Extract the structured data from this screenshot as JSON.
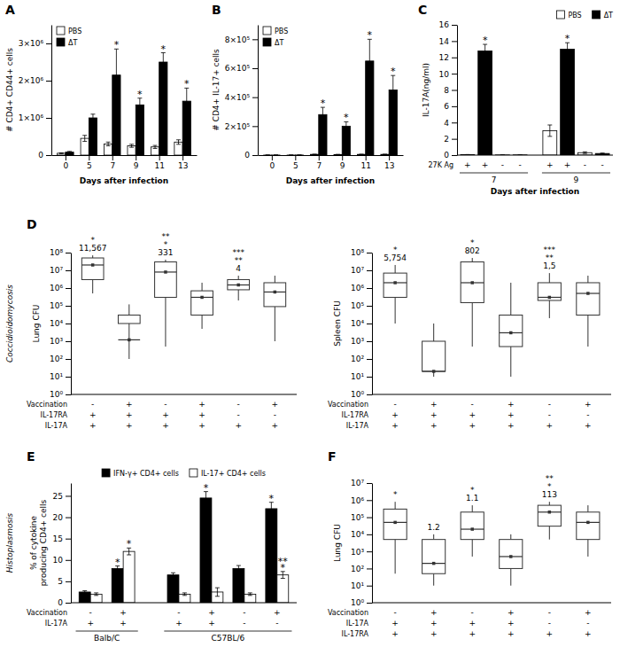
{
  "chart_data": [
    {
      "type": "bar",
      "title": "A",
      "xlabel": "Days after infection",
      "ylabel": "# CD4+ CD44+ cells",
      "categories": [
        "0",
        "5",
        "7",
        "9",
        "11",
        "13"
      ],
      "series": [
        {
          "name": "PBS",
          "color": "white",
          "values": [
            50000,
            450000,
            300000,
            250000,
            220000,
            350000
          ],
          "errors": [
            10000,
            80000,
            50000,
            40000,
            40000,
            60000
          ]
        },
        {
          "name": "ΔT",
          "color": "black",
          "values": [
            80000,
            1000000,
            2150000,
            1350000,
            2500000,
            1450000
          ],
          "errors": [
            20000,
            100000,
            700000,
            180000,
            250000,
            350000
          ],
          "annotations": [
            null,
            null,
            "*",
            "*",
            "*",
            "*"
          ]
        }
      ],
      "ylim": [
        0,
        3500000
      ],
      "yticks": [
        0,
        {
          "value": 1000000,
          "label": "1×10⁶"
        },
        {
          "value": 2000000,
          "label": "2×10⁶"
        },
        {
          "value": 3000000,
          "label": "3×10⁶"
        }
      ],
      "legend": "upper left"
    },
    {
      "type": "bar",
      "title": "B",
      "xlabel": "Days after infection",
      "ylabel": "# CD4+ IL-17+ cells",
      "categories": [
        "0",
        "5",
        "7",
        "9",
        "11",
        "13"
      ],
      "series": [
        {
          "name": "PBS",
          "color": "white",
          "values": [
            200,
            300,
            5000,
            4000,
            5000,
            5000
          ],
          "errors": [
            100,
            100,
            1000,
            1000,
            1000,
            1000
          ]
        },
        {
          "name": "ΔT",
          "color": "black",
          "values": [
            300,
            500,
            280000,
            200000,
            650000,
            450000
          ],
          "errors": [
            100,
            200,
            50000,
            30000,
            150000,
            100000
          ],
          "annotations": [
            null,
            null,
            "*",
            "*",
            "*",
            "*"
          ]
        }
      ],
      "ylim": [
        0,
        900000
      ],
      "yticks": [
        0,
        {
          "value": 200000,
          "label": "2×10⁵"
        },
        {
          "value": 400000,
          "label": "4×10⁵"
        },
        {
          "value": 600000,
          "label": "6×10⁵"
        },
        {
          "value": 800000,
          "label": "8×10⁵"
        }
      ],
      "legend": "upper left"
    },
    {
      "type": "bar",
      "title": "C",
      "xlabel": "Days after infection",
      "ylabel": "IL-17A(ng/ml)",
      "values": [
        0.05,
        12.8,
        0.02,
        0.02,
        3.0,
        13.0,
        0.3,
        0.2
      ],
      "errors": [
        0.02,
        0.8,
        0.01,
        0.01,
        0.7,
        0.8,
        0.1,
        0.05
      ],
      "colors": [
        "white",
        "black",
        "white",
        "black",
        "white",
        "black",
        "white",
        "black"
      ],
      "annotations": [
        null,
        "*",
        null,
        null,
        null,
        "*",
        null,
        null
      ],
      "table": [
        {
          "label": "27K Ag",
          "values": [
            "+",
            "+",
            "-",
            "-",
            "+",
            "+",
            "-",
            "-"
          ]
        }
      ],
      "groups": [
        "7",
        "7",
        "7",
        "7",
        "9",
        "9",
        "9",
        "9"
      ],
      "legend": "upper right",
      "legend_entries": [
        {
          "name": "PBS",
          "color": "white"
        },
        {
          "name": "ΔT",
          "color": "black"
        }
      ],
      "ylim": [
        0,
        16
      ],
      "yticks": [
        0,
        2,
        4,
        6,
        8,
        10,
        12,
        14,
        16
      ]
    },
    {
      "type": "box",
      "title": "D",
      "ylabel": "Lung CFU",
      "log": "y",
      "side_label": "Coccidioidomycosis",
      "boxes": [
        {
          "q1": 3000000.0,
          "median": 20000000.0,
          "q3": 50000000.0,
          "whisker_low": 500000.0,
          "whisker_high": 70000000.0,
          "mean": 20000000.0
        },
        {
          "q1": 10000.0,
          "median": 1200.0,
          "q3": 30000.0,
          "whisker_low": 100.0,
          "whisker_high": 120000.0,
          "mean": 1200.0
        },
        {
          "q1": 300000.0,
          "median": 8000000.0,
          "q3": 30000000.0,
          "whisker_low": 500.0,
          "whisker_high": 40000000.0,
          "mean": 8000000.0
        },
        {
          "q1": 30000.0,
          "median": 300000.0,
          "q3": 700000.0,
          "whisker_low": 5000.0,
          "whisker_high": 2000000.0,
          "mean": 300000.0
        },
        {
          "q1": 800000.0,
          "median": 1500000.0,
          "q3": 3000000.0,
          "whisker_low": 200000.0,
          "whisker_high": 5000000.0,
          "mean": 1500000.0
        },
        {
          "q1": 90000.0,
          "median": 600000.0,
          "q3": 2000000.0,
          "whisker_low": 1000.0,
          "whisker_high": 5000000.0,
          "mean": 600000.0
        }
      ],
      "annotations": [
        "*\n11,567",
        null,
        "**\n*\n331",
        null,
        "***\n**\n4",
        null
      ],
      "table": [
        {
          "label": "Vaccination",
          "values": [
            "-",
            "+",
            "-",
            "+",
            "-",
            "+"
          ]
        },
        {
          "label": "IL-17RA",
          "values": [
            "+",
            "+",
            "+",
            "+",
            "-",
            "-"
          ]
        },
        {
          "label": "IL-17A",
          "values": [
            "+",
            "+",
            "+",
            "+",
            "+",
            "+"
          ]
        }
      ],
      "ylim": [
        1,
        100000000
      ],
      "yticks": [
        {
          "value": 1,
          "label": "10⁰"
        },
        {
          "value": 10,
          "label": "10¹"
        },
        {
          "value": 100,
          "label": "10²"
        },
        {
          "value": 1000,
          "label": "10³"
        },
        {
          "value": 10000,
          "label": "10⁴"
        },
        {
          "value": 100000,
          "label": "10⁵"
        },
        {
          "value": 1000000,
          "label": "10⁶"
        },
        {
          "value": 10000000,
          "label": "10⁷"
        },
        {
          "value": 100000000,
          "label": "10⁸"
        }
      ]
    },
    {
      "type": "box",
      "ylabel": "Spleen CFU",
      "log": "y",
      "boxes": [
        {
          "q1": 300000.0,
          "median": 2000000.0,
          "q3": 7000000.0,
          "whisker_low": 10000.0,
          "whisker_high": 20000000.0,
          "mean": 2000000.0
        },
        {
          "q1": 20,
          "median": 20,
          "q3": 1000.0,
          "whisker_low": 10,
          "whisker_high": 10000.0,
          "mean": 20
        },
        {
          "q1": 150000.0,
          "median": 2000000.0,
          "q3": 30000000.0,
          "whisker_low": 500.0,
          "whisker_high": 50000000.0,
          "mean": 2000000.0
        },
        {
          "q1": 500.0,
          "median": 3000.0,
          "q3": 30000.0,
          "whisker_low": 10,
          "whisker_high": 2000000.0,
          "mean": 3000.0
        },
        {
          "q1": 200000.0,
          "median": 300000.0,
          "q3": 2000000.0,
          "whisker_low": 20000.0,
          "whisker_high": 7000000.0,
          "mean": 300000.0
        },
        {
          "q1": 30000.0,
          "median": 500000.0,
          "q3": 2000000.0,
          "whisker_low": 500.0,
          "whisker_high": 5000000.0,
          "mean": 500000.0
        }
      ],
      "annotations": [
        "*\n5,754",
        null,
        "*\n802",
        null,
        "***\n**\n1,5",
        null
      ],
      "table": [
        {
          "label": "Vaccination",
          "values": [
            "-",
            "+",
            "-",
            "+",
            "-",
            "+"
          ]
        },
        {
          "label": "IL-17RA",
          "values": [
            "+",
            "+",
            "+",
            "+",
            "-",
            "-"
          ]
        },
        {
          "label": "IL-17A",
          "values": [
            "+",
            "+",
            "+",
            "+",
            "+",
            "+"
          ]
        }
      ],
      "ylim": [
        1,
        100000000
      ],
      "yticks": [
        {
          "value": 1,
          "label": "10⁰"
        },
        {
          "value": 10,
          "label": "10¹"
        },
        {
          "value": 100,
          "label": "10²"
        },
        {
          "value": 1000,
          "label": "10³"
        },
        {
          "value": 10000,
          "label": "10⁴"
        },
        {
          "value": 100000,
          "label": "10⁵"
        },
        {
          "value": 1000000,
          "label": "10⁶"
        },
        {
          "value": 10000000,
          "label": "10⁷"
        },
        {
          "value": 100000000,
          "label": "10⁸"
        }
      ]
    },
    {
      "type": "bar",
      "title": "E",
      "ylabel": "% of cytokine\nproducing CD4+ cells",
      "side_label": "Histoplasmosis",
      "series": [
        {
          "name": "IFN-γ+ CD4+ cells",
          "color": "black",
          "values": [
            2.5,
            8.0,
            6.5,
            24.5,
            8.0,
            22.0
          ],
          "errors": [
            0.3,
            0.6,
            0.5,
            1.5,
            0.7,
            1.5
          ],
          "annotations": [
            null,
            "*",
            null,
            "*",
            null,
            "*"
          ]
        },
        {
          "name": "IL-17+ CD4+ cells",
          "color": "white",
          "values": [
            2.0,
            12.0,
            2.0,
            2.5,
            2.0,
            6.5
          ],
          "errors": [
            0.3,
            0.8,
            0.3,
            1.0,
            0.3,
            0.8
          ],
          "annotations": [
            null,
            "*",
            null,
            null,
            null,
            "**\n*"
          ]
        }
      ],
      "table": [
        {
          "label": "Vaccination",
          "values": [
            "-",
            "+",
            "-",
            "+",
            "-",
            "+"
          ]
        },
        {
          "label": "IL-17A",
          "values": [
            "+",
            "+",
            "+",
            "+",
            "-",
            "-"
          ]
        }
      ],
      "groups": [
        "Balb/C",
        "Balb/C",
        "C57BL/6",
        "C57BL/6",
        "C57BL/6",
        "C57BL/6"
      ],
      "legend": "upper center",
      "ylim": [
        0,
        28
      ],
      "yticks": [
        0,
        5,
        10,
        15,
        20,
        25
      ]
    },
    {
      "type": "box",
      "title": "F",
      "ylabel": "Lung CFU",
      "log": "y",
      "boxes": [
        {
          "q1": 5000.0,
          "median": 50000.0,
          "q3": 300000.0,
          "whisker_low": 50.0,
          "whisker_high": 800000.0,
          "mean": 50000.0
        },
        {
          "q1": 50.0,
          "median": 200.0,
          "q3": 5000.0,
          "whisker_low": 10.0,
          "whisker_high": 10000.0,
          "mean": 200.0
        },
        {
          "q1": 5000.0,
          "median": 20000.0,
          "q3": 200000.0,
          "whisker_low": 500.0,
          "whisker_high": 500000.0,
          "mean": 20000.0
        },
        {
          "q1": 100.0,
          "median": 500.0,
          "q3": 5000.0,
          "whisker_low": 10.0,
          "whisker_high": 10000.0,
          "mean": 500.0
        },
        {
          "q1": 30000.0,
          "median": 200000.0,
          "q3": 500000.0,
          "whisker_low": 5000.0,
          "whisker_high": 800000.0,
          "mean": 200000.0
        },
        {
          "q1": 5000.0,
          "median": 50000.0,
          "q3": 200000.0,
          "whisker_low": 500.0,
          "whisker_high": 500000.0,
          "mean": 50000.0
        }
      ],
      "annotations": [
        "*",
        "1.2",
        "*\n1.1",
        null,
        "**\n*\n113",
        null
      ],
      "table": [
        {
          "label": "Vaccination",
          "values": [
            "-",
            "+",
            "-",
            "+",
            "-",
            "+"
          ]
        },
        {
          "label": "IL-17A",
          "values": [
            "+",
            "+",
            "+",
            "+",
            "-",
            "-"
          ]
        },
        {
          "label": "IL-17RA",
          "values": [
            "+",
            "+",
            "+",
            "+",
            "+",
            "+"
          ]
        }
      ],
      "ylim": [
        1,
        10000000
      ],
      "yticks": [
        {
          "value": 1,
          "label": "10⁰"
        },
        {
          "value": 10,
          "label": "10¹"
        },
        {
          "value": 100,
          "label": "10²"
        },
        {
          "value": 1000,
          "label": "10³"
        },
        {
          "value": 10000,
          "label": "10⁴"
        },
        {
          "value": 100000,
          "label": "10⁵"
        },
        {
          "value": 1000000,
          "label": "10⁶"
        },
        {
          "value": 10000000,
          "label": "10⁷"
        }
      ]
    }
  ]
}
